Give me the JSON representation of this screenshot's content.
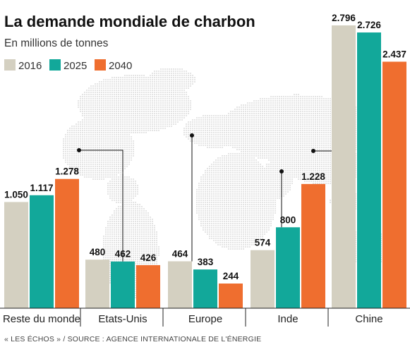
{
  "chart_data": {
    "type": "bar",
    "title": "La demande mondiale de charbon",
    "subtitle": "En millions de tonnes",
    "categories": [
      "Reste du monde",
      "Etats-Unis",
      "Europe",
      "Inde",
      "Chine"
    ],
    "series": [
      {
        "name": "2016",
        "color": "#d4d0c1",
        "values": [
          1050,
          480,
          464,
          574,
          2796
        ],
        "labels": [
          "1.050",
          "480",
          "464",
          "574",
          "2.796"
        ]
      },
      {
        "name": "2025",
        "color": "#12a89a",
        "values": [
          1117,
          462,
          383,
          800,
          2726
        ],
        "labels": [
          "1.117",
          "462",
          "383",
          "800",
          "2.726"
        ]
      },
      {
        "name": "2040",
        "color": "#ef6e2f",
        "values": [
          1278,
          426,
          244,
          1228,
          2437
        ],
        "labels": [
          "1.278",
          "426",
          "244",
          "1.228",
          "2.437"
        ]
      }
    ],
    "ylim": [
      0,
      2900
    ],
    "legend_position": "top-left",
    "source": "« LES ÉCHOS » / SOURCE : AGENCE INTERNATIONALE DE L'ÉNERGIE",
    "background": "world-map-dots"
  }
}
